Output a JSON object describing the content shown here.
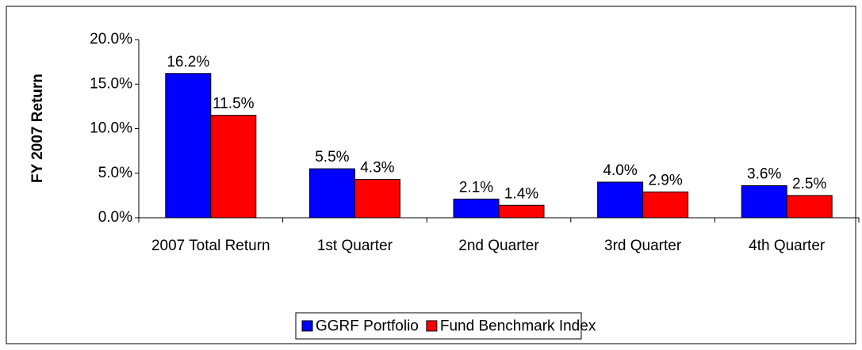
{
  "chart_data": {
    "type": "bar",
    "y_label": "FY 2007 Return",
    "categories": [
      "2007 Total Return",
      "1st Quarter",
      "2nd Quarter",
      "3rd Quarter",
      "4th Quarter"
    ],
    "series": [
      {
        "name": "GGRF Portfolio",
        "color": "#0000ff",
        "values": [
          16.2,
          5.5,
          2.1,
          4.0,
          3.6
        ],
        "value_labels": [
          "16.2%",
          "5.5%",
          "2.1%",
          "4.0%",
          "3.6%"
        ]
      },
      {
        "name": "Fund Benchmark Index",
        "color": "#ff0000",
        "values": [
          11.5,
          4.3,
          1.4,
          2.9,
          2.5
        ],
        "value_labels": [
          "11.5%",
          "4.3%",
          "1.4%",
          "2.9%",
          "2.5%"
        ]
      }
    ],
    "ylim": [
      0,
      20
    ],
    "yticks": [
      {
        "value": 0,
        "label": "0.0%"
      },
      {
        "value": 5,
        "label": "5.0%"
      },
      {
        "value": 10,
        "label": "10.0%"
      },
      {
        "value": 15,
        "label": "15.0%"
      },
      {
        "value": 20,
        "label": "20.0%"
      }
    ],
    "grid": false,
    "legend": "bottom"
  }
}
